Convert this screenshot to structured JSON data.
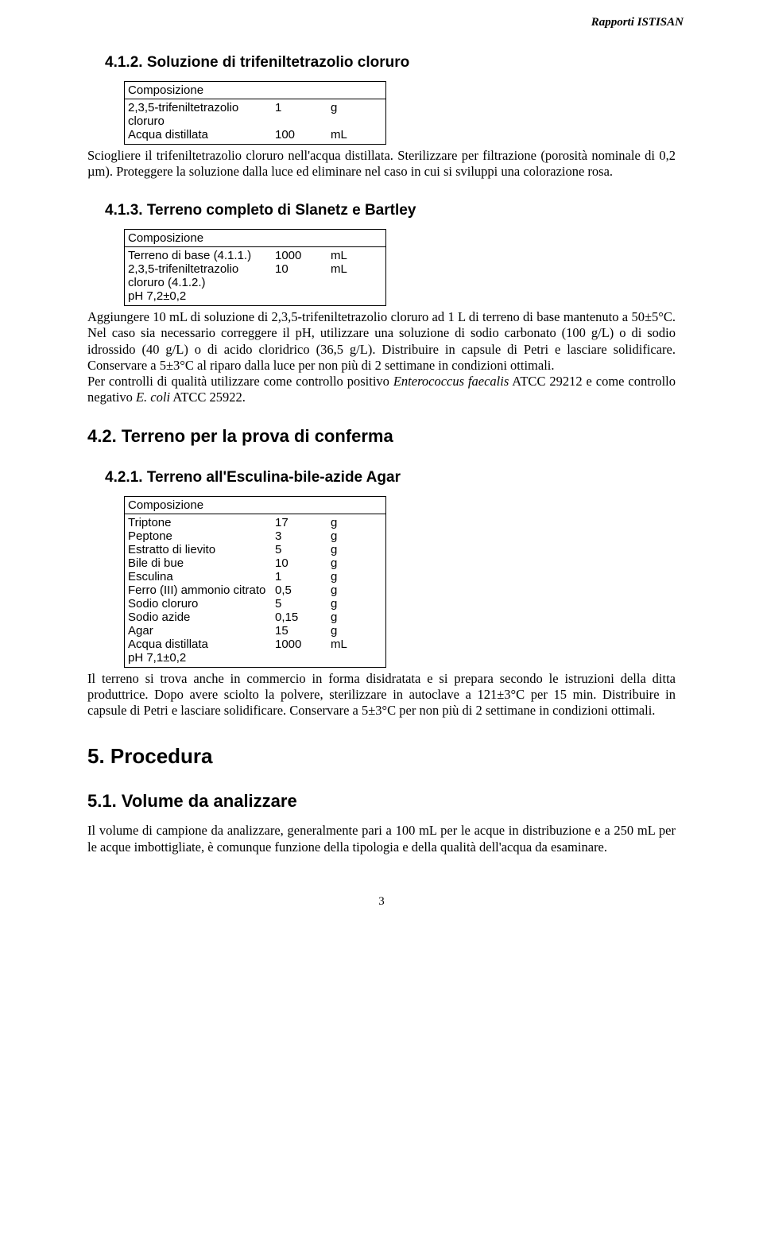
{
  "header": {
    "right": "Rapporti ISTISAN"
  },
  "page_number": "3",
  "sec_4_1_2": {
    "title": "4.1.2. Soluzione di trifeniltetrazolio cloruro",
    "comp_title": "Composizione",
    "rows": [
      {
        "c1": "2,3,5-trifeniltetrazolio cloruro",
        "c2": "1",
        "c3": "g"
      },
      {
        "c1": "Acqua distillata",
        "c2": "100",
        "c3": "mL"
      }
    ],
    "body": "Sciogliere il trifeniltetrazolio cloruro nell'acqua distillata. Sterilizzare per filtrazione (porosità nominale di 0,2 µm). Proteggere la soluzione dalla luce ed eliminare nel caso in cui si sviluppi una colorazione rosa."
  },
  "sec_4_1_3": {
    "title": "4.1.3. Terreno completo di Slanetz e Bartley",
    "comp_title": "Composizione",
    "rows": [
      {
        "c1": "Terreno di base (4.1.1.)",
        "c2": "1000",
        "c3": "mL"
      },
      {
        "c1": "2,3,5-trifeniltetrazolio cloruro (4.1.2.)",
        "c2": "10",
        "c3": "mL"
      },
      {
        "c1": "pH 7,2±0,2",
        "c2": "",
        "c3": ""
      }
    ],
    "body1": "Aggiungere 10 mL di soluzione di 2,3,5-trifeniltetrazolio cloruro ad 1 L di terreno di base mantenuto a 50±5°C. Nel caso sia necessario correggere il pH, utilizzare una soluzione di sodio carbonato (100 g/L) o di sodio idrossido (40 g/L) o di acido cloridrico (36,5 g/L). Distribuire in capsule di Petri e lasciare solidificare. Conservare a 5±3°C al riparo dalla luce per non più di 2 settimane in condizioni ottimali.",
    "body2a": "Per controlli di qualità utilizzare come controllo positivo ",
    "body2b": "Enterococcus faecalis",
    "body2c": " ATCC 29212 e come controllo negativo ",
    "body2d": "E. coli",
    "body2e": " ATCC 25922."
  },
  "sec_4_2": {
    "title": "4.2. Terreno per la prova di conferma"
  },
  "sec_4_2_1": {
    "title": "4.2.1. Terreno all'Esculina-bile-azide Agar",
    "comp_title": "Composizione",
    "rows": [
      {
        "c1": "Triptone",
        "c2": "17",
        "c3": "g"
      },
      {
        "c1": "Peptone",
        "c2": "3",
        "c3": "g"
      },
      {
        "c1": "Estratto di lievito",
        "c2": "5",
        "c3": "g"
      },
      {
        "c1": "Bile di bue",
        "c2": "10",
        "c3": "g"
      },
      {
        "c1": "Esculina",
        "c2": "1",
        "c3": "g"
      },
      {
        "c1": "Ferro (III) ammonio citrato",
        "c2": "0,5",
        "c3": "g"
      },
      {
        "c1": "Sodio cloruro",
        "c2": "5",
        "c3": "g"
      },
      {
        "c1": "Sodio azide",
        "c2": "0,15",
        "c3": "g"
      },
      {
        "c1": "Agar",
        "c2": "15",
        "c3": "g"
      },
      {
        "c1": "Acqua distillata",
        "c2": "1000",
        "c3": "mL"
      },
      {
        "c1": "pH 7,1±0,2",
        "c2": "",
        "c3": ""
      }
    ],
    "body": "Il terreno si trova anche in commercio in forma disidratata e si prepara secondo le istruzioni della ditta produttrice. Dopo avere sciolto la polvere, sterilizzare in autoclave a 121±3°C per 15 min. Distribuire in capsule di Petri e lasciare solidificare. Conservare a 5±3°C per non più di 2 settimane in condizioni ottimali."
  },
  "sec_5": {
    "title": "5. Procedura"
  },
  "sec_5_1": {
    "title": "5.1. Volume da analizzare",
    "body": "Il volume di campione da analizzare, generalmente pari a 100 mL per le acque in distribuzione e a 250 mL per le acque imbottigliate, è comunque funzione della tipologia e della qualità dell'acqua da esaminare."
  }
}
